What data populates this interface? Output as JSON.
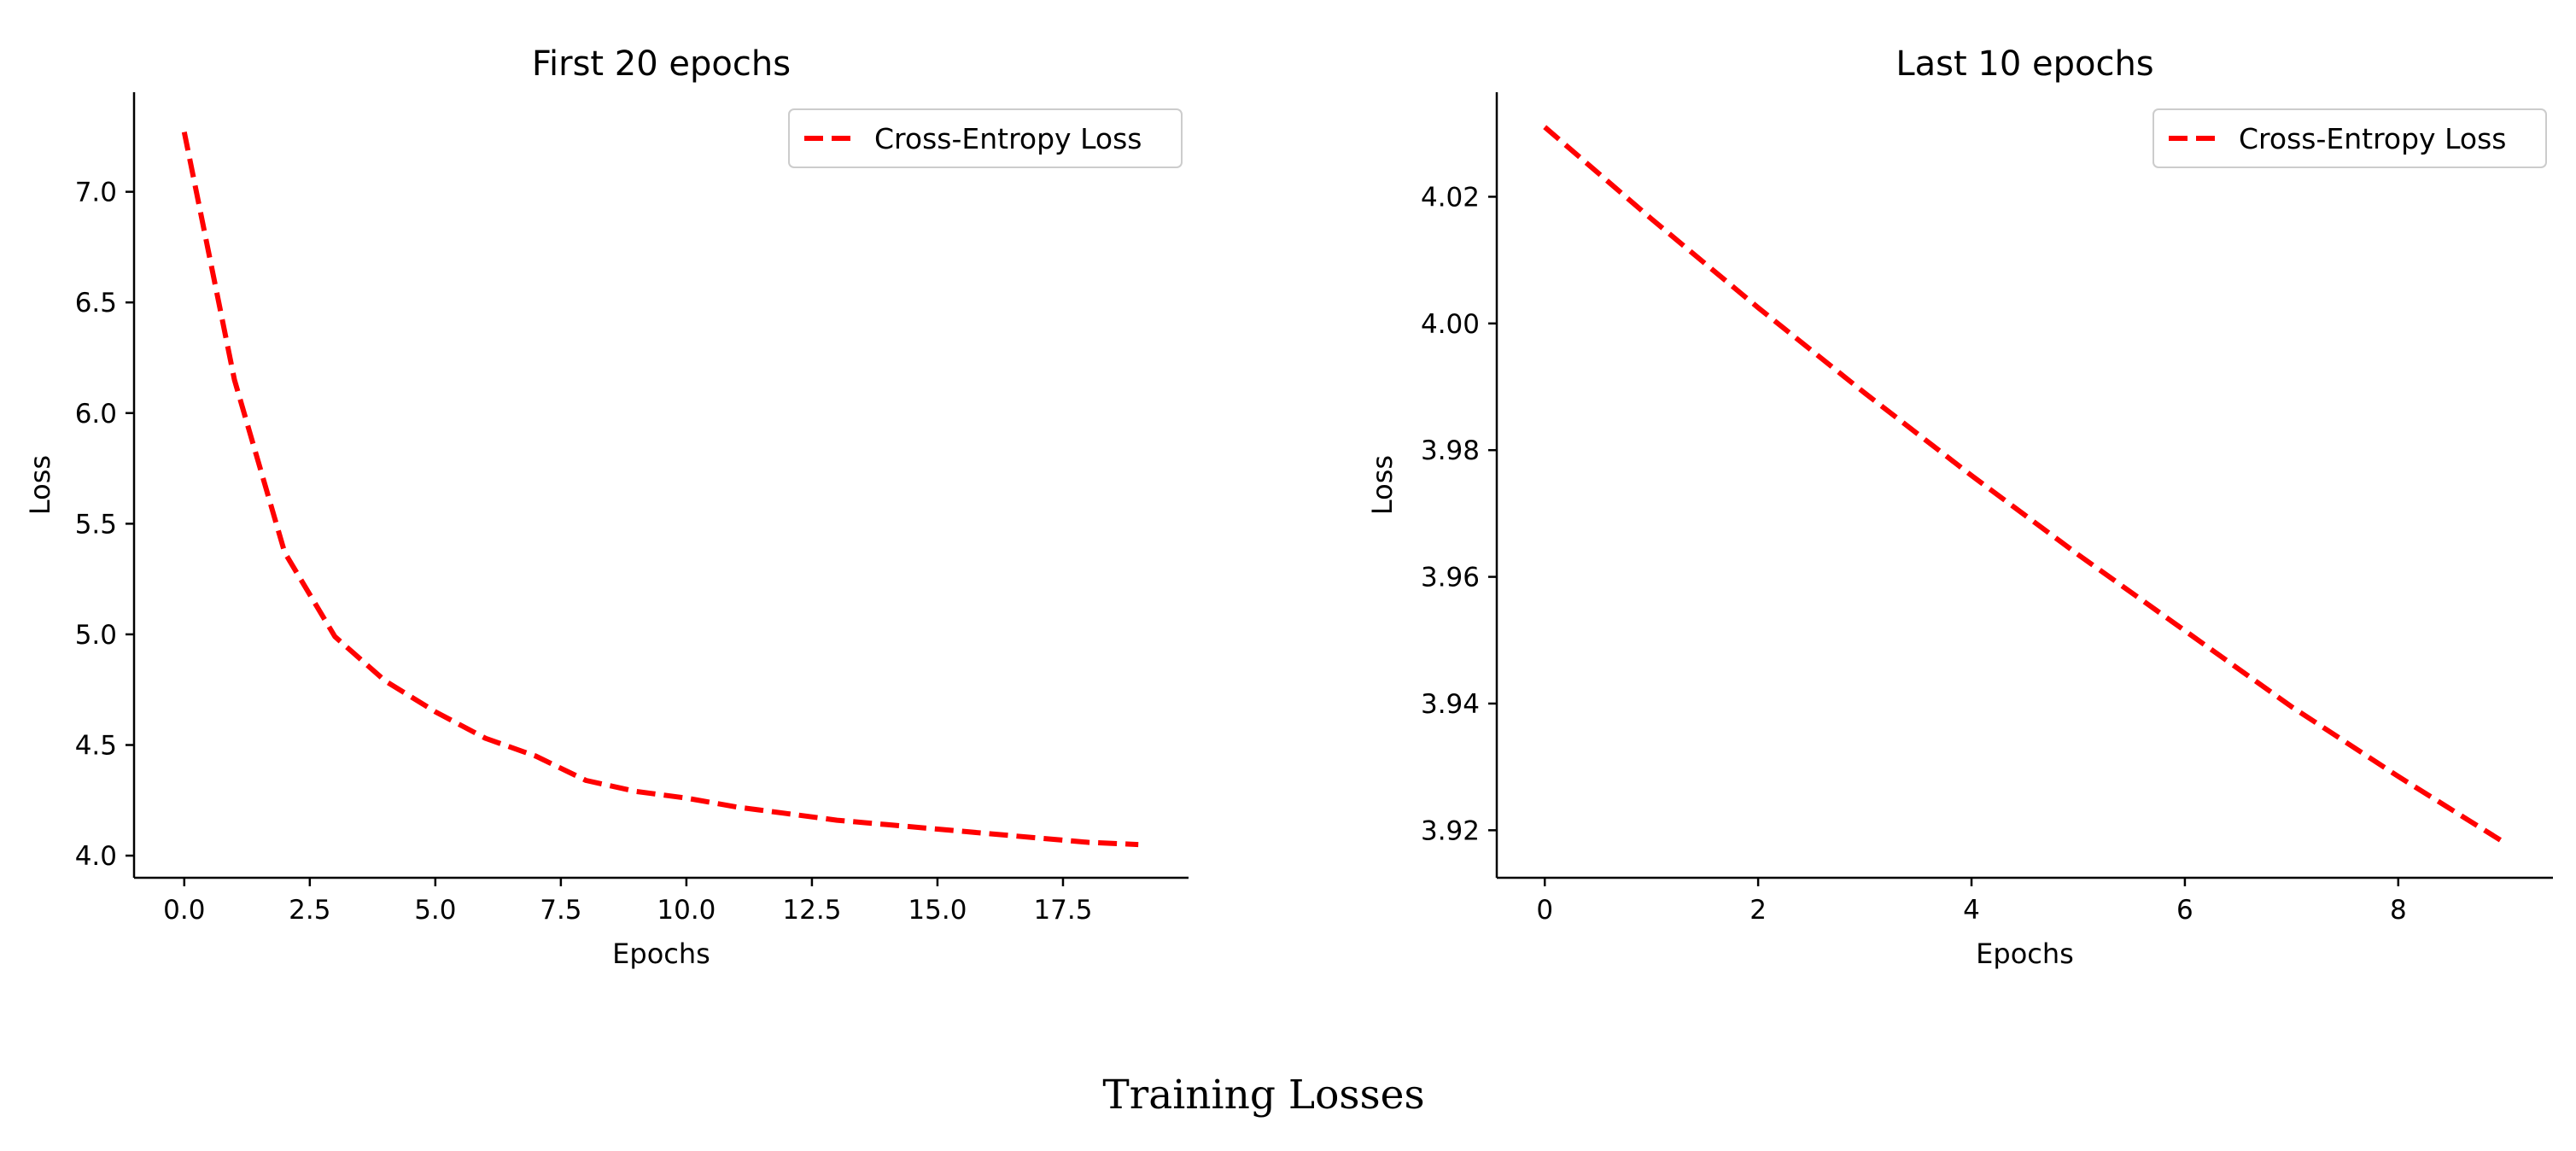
{
  "caption": "Training Losses",
  "series_color": "#ff0000",
  "chart_data": [
    {
      "type": "line",
      "title": "First 20 epochs",
      "xlabel": "Epochs",
      "ylabel": "Loss",
      "xlim": [
        -1.0,
        20.0
      ],
      "ylim": [
        3.9,
        7.45
      ],
      "xticks": [
        0.0,
        2.5,
        5.0,
        7.5,
        10.0,
        12.5,
        15.0,
        17.5
      ],
      "xtick_labels": [
        "0.0",
        "2.5",
        "5.0",
        "7.5",
        "10.0",
        "12.5",
        "15.0",
        "17.5"
      ],
      "yticks": [
        4.0,
        4.5,
        5.0,
        5.5,
        6.0,
        6.5,
        7.0
      ],
      "ytick_labels": [
        "4.0",
        "4.5",
        "5.0",
        "5.5",
        "6.0",
        "6.5",
        "7.0"
      ],
      "grid": false,
      "legend_position": "top-right",
      "series": [
        {
          "name": "Cross-Entropy Loss",
          "color": "#ff0000",
          "style": "dashed",
          "x": [
            0,
            1,
            2,
            3,
            4,
            5,
            6,
            7,
            8,
            9,
            10,
            11,
            12,
            13,
            14,
            15,
            16,
            17,
            18,
            19
          ],
          "y": [
            7.27,
            6.15,
            5.37,
            4.99,
            4.79,
            4.65,
            4.53,
            4.45,
            4.34,
            4.29,
            4.26,
            4.22,
            4.19,
            4.16,
            4.14,
            4.12,
            4.1,
            4.08,
            4.06,
            4.05
          ]
        }
      ]
    },
    {
      "type": "line",
      "title": "Last 10 epochs",
      "xlabel": "Epochs",
      "ylabel": "Loss",
      "xlim": [
        -0.45,
        9.45
      ],
      "ylim": [
        3.9125,
        4.0365
      ],
      "xticks": [
        0,
        2,
        4,
        6,
        8
      ],
      "xtick_labels": [
        "0",
        "2",
        "4",
        "6",
        "8"
      ],
      "yticks": [
        3.92,
        3.94,
        3.96,
        3.98,
        4.0,
        4.02
      ],
      "ytick_labels": [
        "3.92",
        "3.94",
        "3.96",
        "3.98",
        "4.00",
        "4.02"
      ],
      "grid": false,
      "legend_position": "top-right",
      "series": [
        {
          "name": "Cross-Entropy Loss",
          "color": "#ff0000",
          "style": "dashed",
          "x": [
            0,
            1,
            2,
            3,
            4,
            5,
            6,
            7,
            8,
            9
          ],
          "y": [
            4.031,
            4.0165,
            4.0025,
            3.989,
            3.976,
            3.9635,
            3.9515,
            3.9395,
            3.9285,
            3.918
          ]
        }
      ]
    }
  ]
}
